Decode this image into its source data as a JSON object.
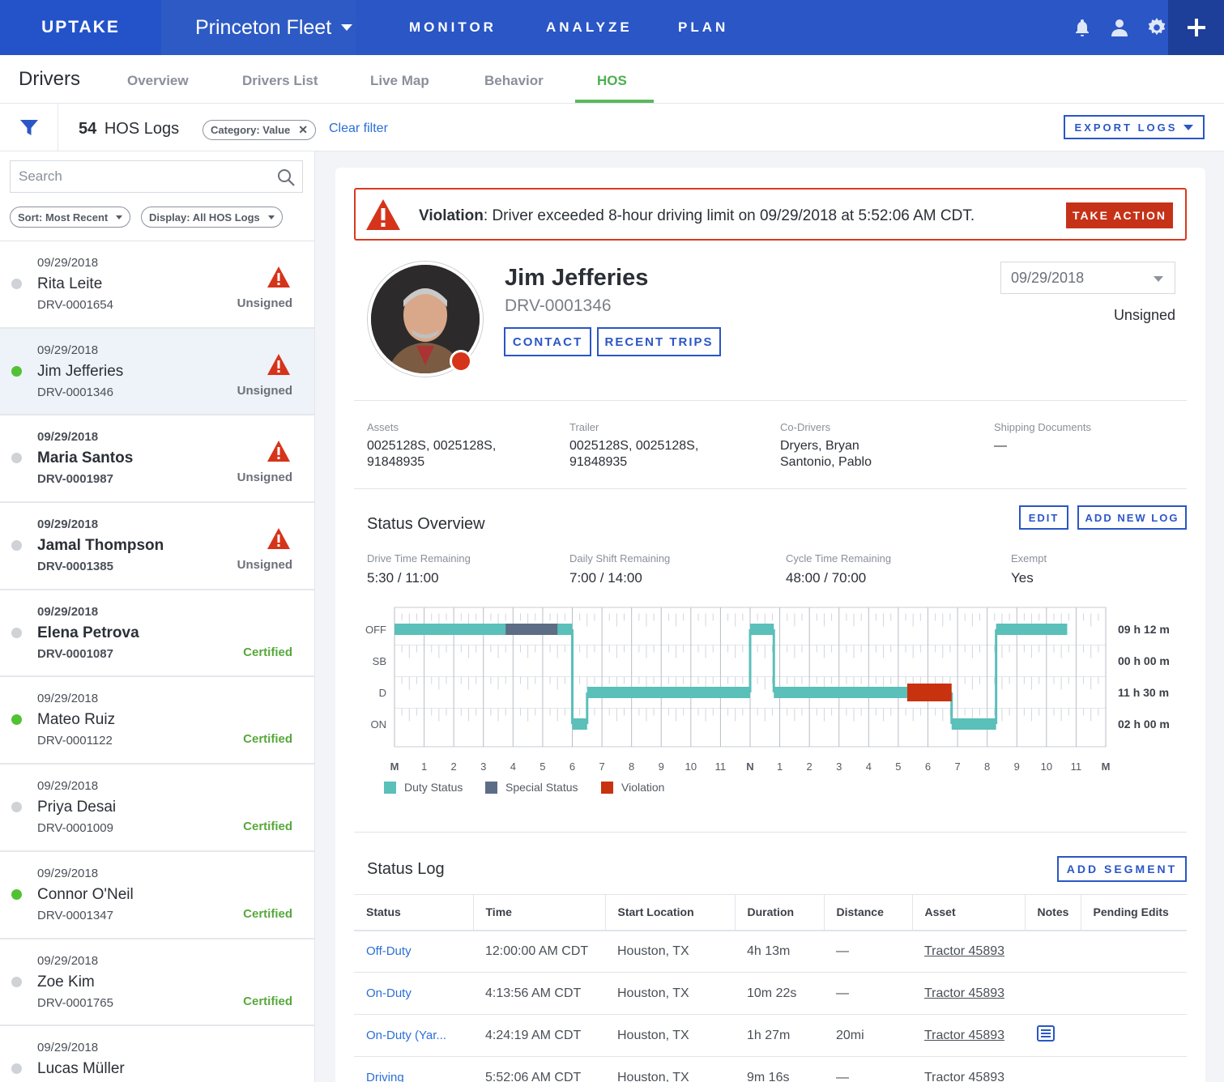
{
  "topbar": {
    "logo": "UPTAKE",
    "fleet": "Princeton Fleet",
    "nav": [
      "MONITOR",
      "ANALYZE",
      "PLAN"
    ]
  },
  "subnav": {
    "title": "Drivers",
    "tabs": [
      "Overview",
      "Drivers List",
      "Live Map",
      "Behavior",
      "HOS"
    ],
    "active_tab": "HOS"
  },
  "filterbar": {
    "count": "54",
    "count_label": "HOS Logs",
    "chip": "Category: Value",
    "clear": "Clear filter",
    "export": "EXPORT LOGS"
  },
  "sidebar": {
    "search_placeholder": "Search",
    "sort": "Sort: Most Recent",
    "display": "Display: All HOS Logs",
    "drivers": [
      {
        "date": "09/29/2018",
        "name": "Rita Leite",
        "id": "DRV-0001654",
        "status": "Unsigned"
      },
      {
        "date": "09/29/2018",
        "name": "Jim Jefferies",
        "id": "DRV-0001346",
        "status": "Unsigned"
      },
      {
        "date": "09/29/2018",
        "name": "Maria Santos",
        "id": "DRV-0001987",
        "status": "Unsigned"
      },
      {
        "date": "09/29/2018",
        "name": "Jamal Thompson",
        "id": "DRV-0001385",
        "status": "Unsigned"
      },
      {
        "date": "09/29/2018",
        "name": "Elena Petrova",
        "id": "DRV-0001087",
        "status": "Certified"
      },
      {
        "date": "09/29/2018",
        "name": "Mateo Ruiz",
        "id": "DRV-0001122",
        "status": "Certified"
      },
      {
        "date": "09/29/2018",
        "name": "Priya Desai",
        "id": "DRV-0001009",
        "status": "Certified"
      },
      {
        "date": "09/29/2018",
        "name": "Connor O'Neil",
        "id": "DRV-0001347",
        "status": "Certified"
      },
      {
        "date": "09/29/2018",
        "name": "Zoe Kim",
        "id": "DRV-0001765",
        "status": "Certified"
      },
      {
        "date": "09/29/2018",
        "name": "Lucas Müller",
        "id": "",
        "status": ""
      }
    ]
  },
  "violation": {
    "label": "Violation",
    "text": ": Driver exceeded 8-hour driving limit on 09/29/2018 at 5:52:06 AM CDT.",
    "action": "TAKE ACTION"
  },
  "profile": {
    "name": "Jim Jefferies",
    "id": "DRV-0001346",
    "contact": "CONTACT",
    "recent_trips": "RECENT TRIPS",
    "date": "09/29/2018",
    "signature": "Unsigned"
  },
  "info": {
    "assets_label": "Assets",
    "assets_1": "0025128S, 0025128S,",
    "assets_2": "91848935",
    "trailer_label": "Trailer",
    "trailer_1": "0025128S, 0025128S,",
    "trailer_2": "91848935",
    "codrivers_label": "Co-Drivers",
    "codrivers_1": "Dryers, Bryan",
    "codrivers_2": "Santonio, Pablo",
    "shipping_label": "Shipping Documents",
    "shipping": "—"
  },
  "status_overview": {
    "title": "Status Overview",
    "edit": "EDIT",
    "add_log": "ADD NEW LOG",
    "stats": [
      {
        "label": "Drive Time Remaining",
        "value": "5:30 / 11:00"
      },
      {
        "label": "Daily Shift Remaining",
        "value": "7:00 / 14:00"
      },
      {
        "label": "Cycle Time Remaining",
        "value": "48:00 / 70:00"
      },
      {
        "label": "Exempt",
        "value": "Yes"
      }
    ]
  },
  "chart_data": {
    "type": "line",
    "rows": [
      "OFF",
      "SB",
      "D",
      "ON"
    ],
    "row_totals": [
      "09 h 12 m",
      "00 h 00 m",
      "11 h 30 m",
      "02 h 00 m"
    ],
    "x_ticks": [
      "M",
      "1",
      "2",
      "3",
      "4",
      "5",
      "6",
      "7",
      "8",
      "9",
      "10",
      "11",
      "N",
      "1",
      "2",
      "3",
      "4",
      "5",
      "6",
      "7",
      "8",
      "9",
      "10",
      "11",
      "M"
    ],
    "duty_segments": [
      {
        "status": "OFF",
        "start": 0,
        "end": 6.0
      },
      {
        "status": "ON",
        "start": 6.0,
        "end": 6.5
      },
      {
        "status": "D",
        "start": 6.5,
        "end": 12.0
      },
      {
        "status": "OFF",
        "start": 12.0,
        "end": 12.8
      },
      {
        "status": "D",
        "start": 12.8,
        "end": 17.3
      },
      {
        "status": "ON",
        "start": 18.8,
        "end": 20.3
      },
      {
        "status": "OFF",
        "start": 20.3,
        "end": 22.7
      }
    ],
    "special_segments": [
      {
        "status": "OFF",
        "start": 3.75,
        "end": 5.5
      }
    ],
    "violation_segments": [
      {
        "status": "D",
        "start": 17.3,
        "end": 18.8
      }
    ],
    "legend": [
      "Duty Status",
      "Special Status",
      "Violation"
    ],
    "colors": {
      "duty": "#5bbfba",
      "special": "#5d6d85",
      "violation": "#c8320f"
    }
  },
  "status_log": {
    "title": "Status Log",
    "add": "ADD SEGMENT",
    "columns": [
      "Status",
      "Time",
      "Start Location",
      "Duration",
      "Distance",
      "Asset",
      "Notes",
      "Pending Edits"
    ],
    "rows": [
      {
        "status": "Off-Duty",
        "time": "12:00:00 AM CDT",
        "location": "Houston, TX",
        "duration": "4h 13m",
        "distance": "—",
        "asset": "Tractor 45893"
      },
      {
        "status": "On-Duty",
        "time": "4:13:56 AM CDT",
        "location": "Houston, TX",
        "duration": "10m 22s",
        "distance": "—",
        "asset": "Tractor 45893"
      },
      {
        "status": "On-Duty (Yar...",
        "time": "4:24:19 AM CDT",
        "location": "Houston, TX",
        "duration": "1h 27m",
        "distance": "20mi",
        "asset": "Tractor 45893"
      },
      {
        "status": "Driving",
        "time": "5:52:06 AM CDT",
        "location": "Houston, TX",
        "duration": "9m 16s",
        "distance": "—",
        "asset": "Tractor 45893"
      }
    ]
  }
}
